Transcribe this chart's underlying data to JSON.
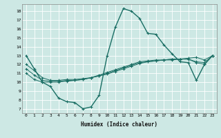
{
  "title": "",
  "xlabel": "Humidex (Indice chaleur)",
  "bg_color": "#cde8e4",
  "grid_color": "#ffffff",
  "line_color": "#1a6e64",
  "marker": "+",
  "xlim": [
    -0.5,
    23.5
  ],
  "ylim": [
    6.5,
    18.8
  ],
  "xticks": [
    0,
    1,
    2,
    3,
    4,
    5,
    6,
    7,
    8,
    9,
    10,
    11,
    12,
    13,
    14,
    15,
    16,
    17,
    18,
    19,
    20,
    21,
    22,
    23
  ],
  "yticks": [
    7,
    8,
    9,
    10,
    11,
    12,
    13,
    14,
    15,
    16,
    17,
    18
  ],
  "series": [
    [
      13.0,
      11.5,
      10.0,
      9.5,
      8.2,
      7.8,
      7.7,
      7.0,
      7.2,
      8.5,
      13.0,
      16.2,
      18.3,
      18.0,
      17.2,
      15.5,
      15.4,
      14.2,
      13.2,
      12.3,
      12.2,
      10.2,
      12.0,
      13.0
    ],
    [
      12.0,
      11.3,
      10.5,
      10.2,
      10.2,
      10.3,
      10.3,
      10.4,
      10.5,
      10.7,
      10.9,
      11.2,
      11.5,
      11.8,
      12.1,
      12.3,
      12.4,
      12.5,
      12.6,
      12.6,
      12.6,
      12.2,
      12.0,
      13.0
    ],
    [
      11.5,
      10.8,
      10.2,
      10.1,
      10.1,
      10.2,
      10.2,
      10.3,
      10.5,
      10.7,
      11.0,
      11.3,
      11.6,
      11.9,
      12.2,
      12.3,
      12.4,
      12.5,
      12.5,
      12.6,
      12.6,
      12.3,
      12.2,
      13.0
    ],
    [
      11.0,
      10.3,
      10.0,
      10.0,
      10.0,
      10.1,
      10.2,
      10.3,
      10.5,
      10.8,
      11.1,
      11.4,
      11.7,
      12.0,
      12.3,
      12.4,
      12.5,
      12.5,
      12.6,
      12.6,
      12.7,
      12.8,
      12.5,
      13.0
    ]
  ]
}
